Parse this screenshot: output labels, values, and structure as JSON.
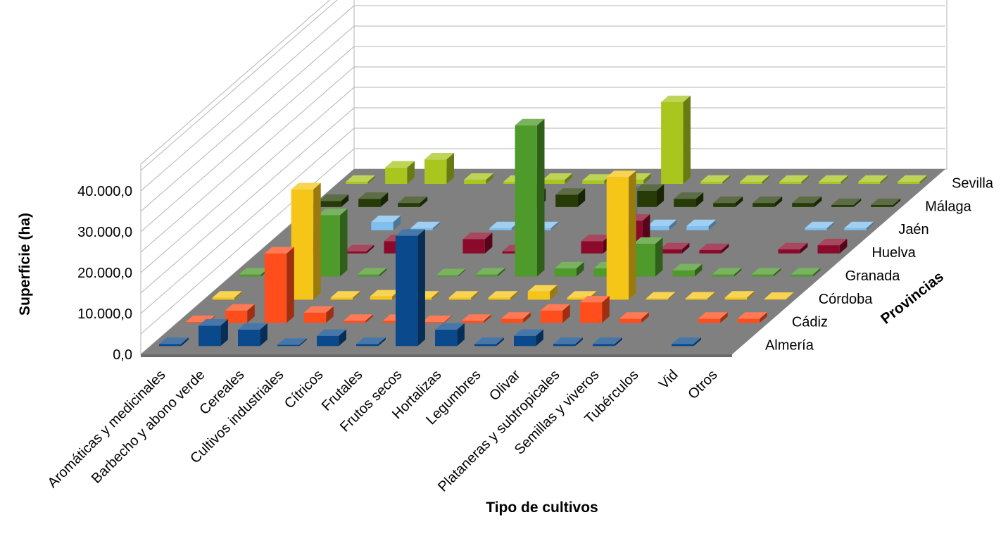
{
  "chart_data": {
    "type": "bar",
    "subtype": "3d-column",
    "xlabel": "Tipo de cultivos",
    "ylabel": "Superficie (ha)",
    "zlabel": "Provincias",
    "ylim": [
      0,
      40000
    ],
    "yticks": [
      "0,0",
      "10.000,0",
      "20.000,0",
      "30.000,0",
      "40.000,0"
    ],
    "grid": true,
    "categories": [
      "Aromáticas y medicinales",
      "Barbecho y abono verde",
      "Cereales",
      "Cultivos industriales",
      "Cítricos",
      "Frutales",
      "Frutos secos",
      "Hortalizas",
      "Legumbres",
      "Olivar",
      "Plataneras y subtropicales",
      "Semillas y viveros",
      "Tubérculos",
      "Vid",
      "Otros"
    ],
    "series": [
      {
        "name": "Almería",
        "color": "#0a4a8c",
        "values": [
          500,
          5000,
          4000,
          300,
          2500,
          500,
          27000,
          4000,
          500,
          2500,
          500,
          500,
          0,
          500,
          0
        ]
      },
      {
        "name": "Cádiz",
        "color": "#ff4d1c",
        "values": [
          200,
          3000,
          17000,
          2500,
          500,
          500,
          200,
          500,
          1000,
          3000,
          5000,
          1000,
          0,
          1000,
          1000
        ]
      },
      {
        "name": "Córdoba",
        "color": "#f5c518",
        "values": [
          500,
          0,
          27000,
          500,
          800,
          500,
          500,
          500,
          2000,
          500,
          30000,
          300,
          300,
          500,
          200
        ]
      },
      {
        "name": "Granada",
        "color": "#4e9a2a",
        "values": [
          500,
          0,
          15000,
          500,
          0,
          300,
          500,
          37000,
          2000,
          2000,
          8000,
          1500,
          500,
          500,
          500
        ]
      },
      {
        "name": "Huelva",
        "color": "#8b0a2b",
        "values": [
          0,
          3000,
          500,
          3000,
          0,
          3500,
          500,
          0,
          3000,
          8000,
          1000,
          800,
          0,
          1000,
          2000
        ]
      },
      {
        "name": "Jaén",
        "color": "#7fbfee",
        "values": [
          2000,
          0,
          2000,
          500,
          0,
          500,
          500,
          0,
          9500,
          1000,
          1000,
          0,
          0,
          500,
          500
        ]
      },
      {
        "name": "Málaga",
        "color": "#263b06",
        "values": [
          1500,
          2000,
          1000,
          0,
          0,
          3000,
          3000,
          0,
          4000,
          2000,
          1000,
          1000,
          1000,
          500,
          500
        ]
      },
      {
        "name": "Sevilla",
        "color": "#a8c61e",
        "values": [
          500,
          4000,
          6000,
          1000,
          500,
          1000,
          800,
          1000,
          20000,
          500,
          500,
          500,
          500,
          500,
          500
        ]
      }
    ]
  }
}
